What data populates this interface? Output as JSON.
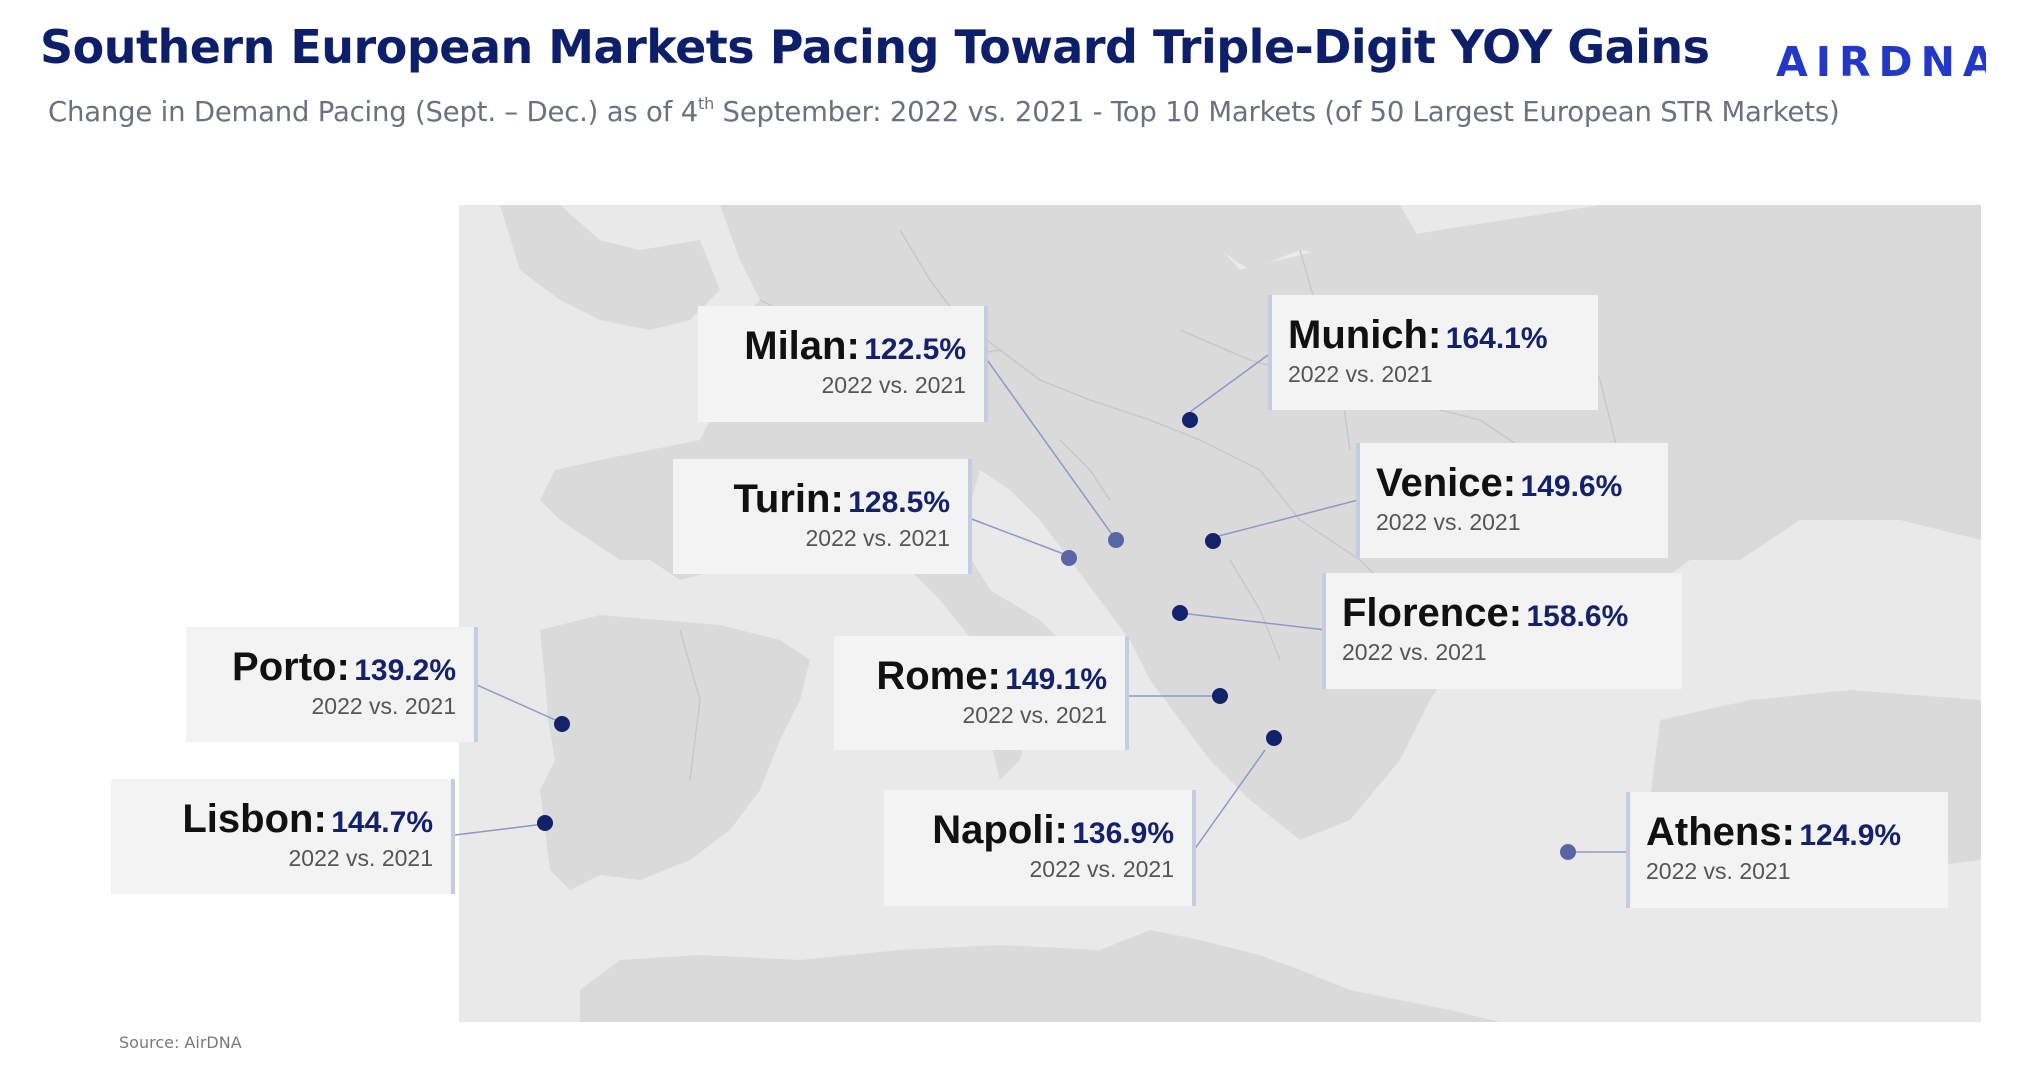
{
  "header": {
    "title": "Southern European Markets Pacing Toward Triple-Digit YOY Gains",
    "subtitle_pre": "Change in Demand Pacing (Sept. – Dec.) as of 4",
    "subtitle_sup": "th",
    "subtitle_post": " September: 2022 vs. 2021 - Top 10 Markets (of 50 Largest European STR Markets)",
    "logo_text": "AIRDNA"
  },
  "markets": [
    {
      "city": "Milan:",
      "value": "122.5%",
      "comparison": "2022 vs. 2021"
    },
    {
      "city": "Munich:",
      "value": "164.1%",
      "comparison": "2022 vs. 2021"
    },
    {
      "city": "Turin:",
      "value": "128.5%",
      "comparison": "2022 vs. 2021"
    },
    {
      "city": "Venice:",
      "value": "149.6%",
      "comparison": "2022 vs. 2021"
    },
    {
      "city": "Florence:",
      "value": "158.6%",
      "comparison": "2022 vs. 2021"
    },
    {
      "city": "Porto:",
      "value": "139.2%",
      "comparison": "2022 vs. 2021"
    },
    {
      "city": "Rome:",
      "value": "149.1%",
      "comparison": "2022 vs. 2021"
    },
    {
      "city": "Lisbon:",
      "value": "144.7%",
      "comparison": "2022 vs. 2021"
    },
    {
      "city": "Napoli:",
      "value": "136.9%",
      "comparison": "2022 vs. 2021"
    },
    {
      "city": "Athens:",
      "value": "124.9%",
      "comparison": "2022 vs. 2021"
    }
  ],
  "colors": {
    "title": "#0d1f6b",
    "logo": "#2338c9",
    "value": "#14226b",
    "marker_dark": "#14226b",
    "marker_light": "#5866a6",
    "map_land": "#d9d9d9",
    "map_sea": "#ebebeb"
  },
  "footer": {
    "source": "Source: AirDNA"
  }
}
